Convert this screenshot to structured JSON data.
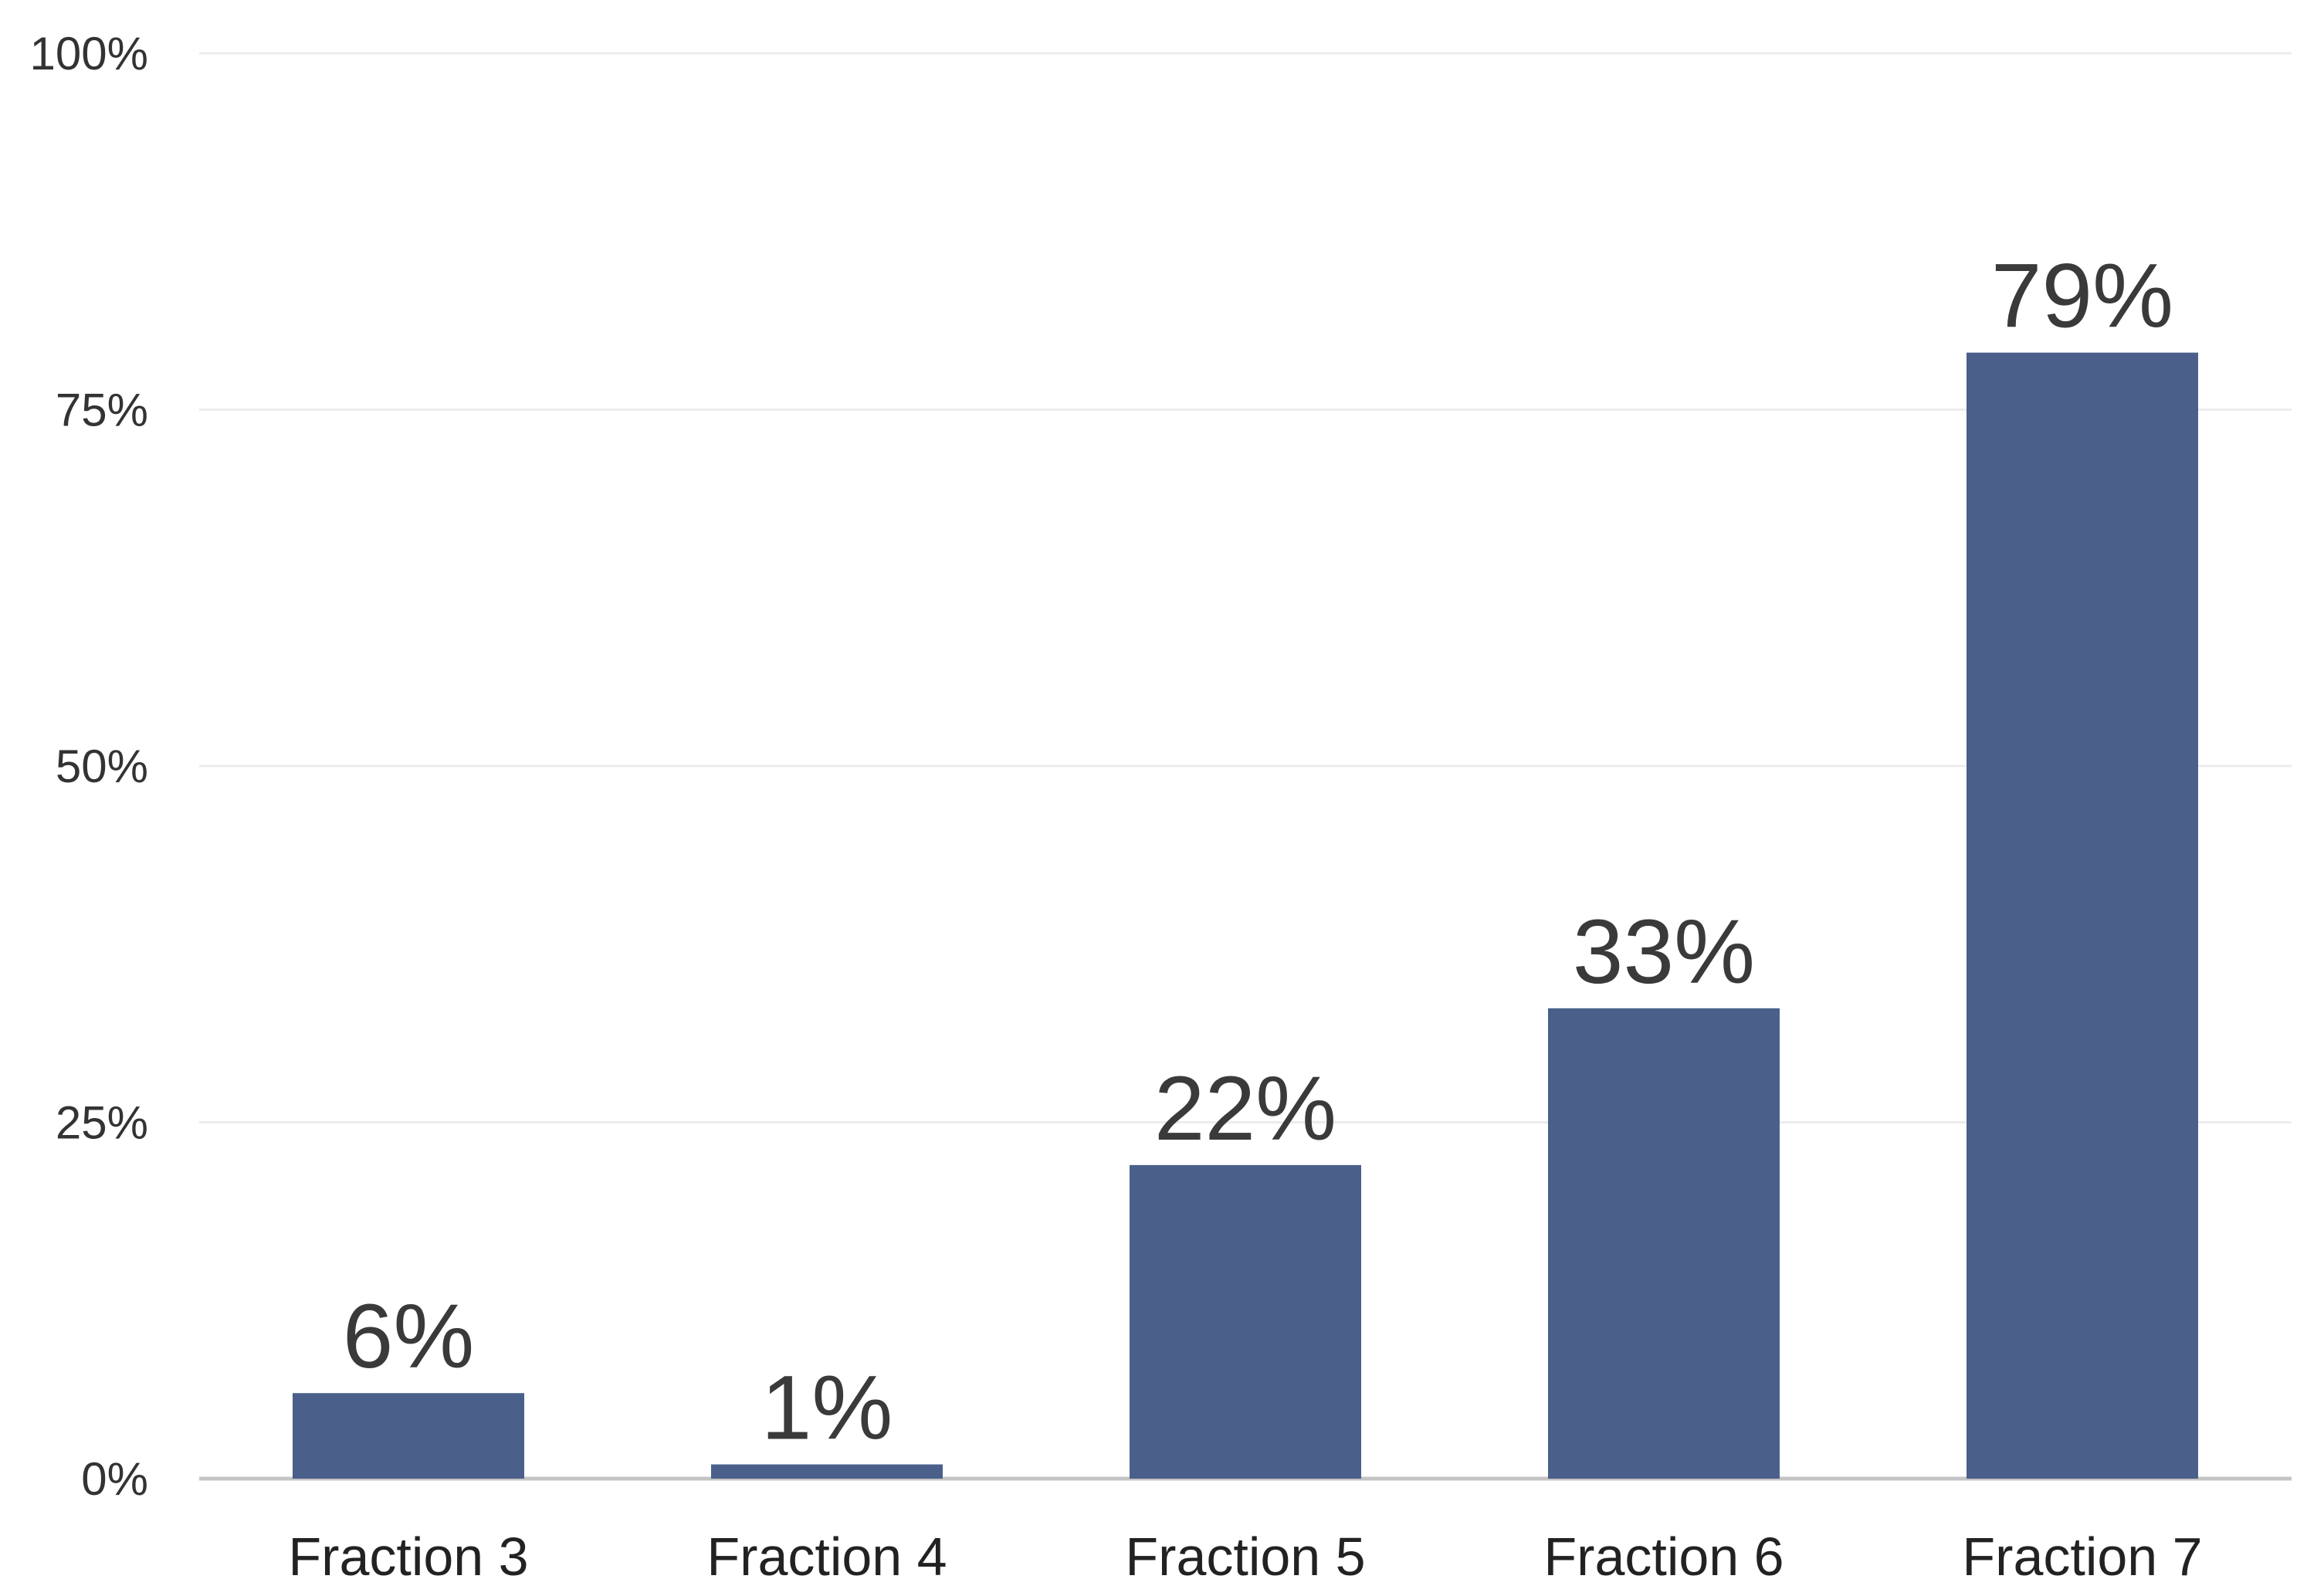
{
  "chart_data": {
    "type": "bar",
    "categories": [
      "Fraction 3",
      "Fraction 4",
      "Fraction 5",
      "Fraction 6",
      "Fraction 7"
    ],
    "values": [
      6,
      1,
      22,
      33,
      79
    ],
    "data_labels": [
      "6%",
      "1%",
      "22%",
      "33%",
      "79%"
    ],
    "y_ticks": [
      {
        "value": 0,
        "label": "0%"
      },
      {
        "value": 25,
        "label": "25%"
      },
      {
        "value": 50,
        "label": "50%"
      },
      {
        "value": 75,
        "label": "75%"
      },
      {
        "value": 100,
        "label": "100%"
      }
    ],
    "ylim": [
      0,
      100
    ],
    "title": "",
    "xlabel": "",
    "ylabel": "",
    "grid": true,
    "legend": "none",
    "colors": {
      "bar": "#4a608b",
      "grid": "#ececec",
      "baseline": "#c4c4c4",
      "text": "#333333"
    }
  }
}
